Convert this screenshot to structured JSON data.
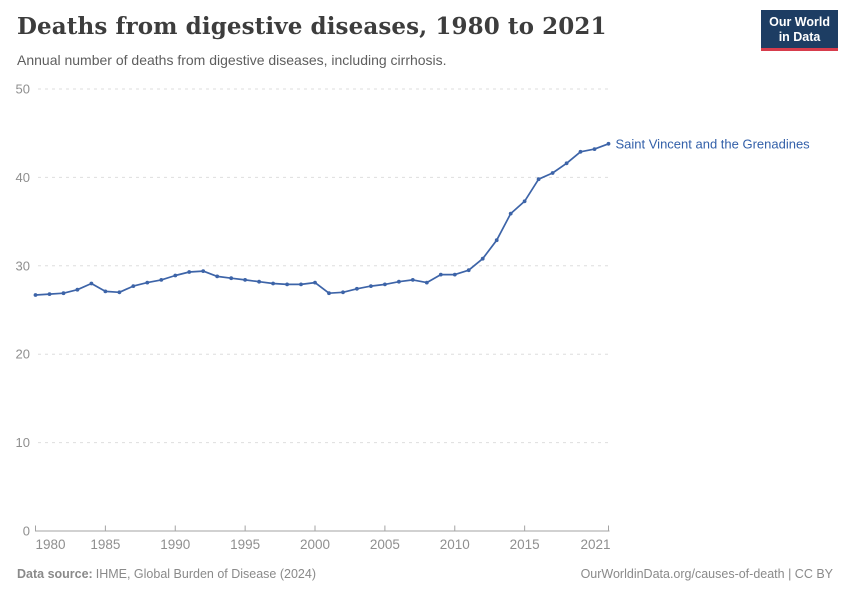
{
  "header": {
    "title": "Deaths from digestive diseases, 1980 to 2021",
    "subtitle": "Annual number of deaths from digestive diseases, including cirrhosis.",
    "logo_line1": "Our World",
    "logo_line2": "in Data"
  },
  "chart_data": {
    "type": "line",
    "title": "Deaths from digestive diseases, 1980 to 2021",
    "xlabel": "",
    "ylabel": "",
    "xlim": [
      1980,
      2021
    ],
    "ylim": [
      0,
      50
    ],
    "yticks": [
      0,
      10,
      20,
      30,
      40,
      50
    ],
    "xticks": [
      1980,
      1985,
      1990,
      1995,
      2000,
      2005,
      2010,
      2015,
      2021
    ],
    "grid": "horizontal-dashed",
    "legend": "end-of-line-label",
    "series": [
      {
        "name": "Saint Vincent and the Grenadines",
        "x": [
          1980,
          1981,
          1982,
          1983,
          1984,
          1985,
          1986,
          1987,
          1988,
          1989,
          1990,
          1991,
          1992,
          1993,
          1994,
          1995,
          1996,
          1997,
          1998,
          1999,
          2000,
          2001,
          2002,
          2003,
          2004,
          2005,
          2006,
          2007,
          2008,
          2009,
          2010,
          2011,
          2012,
          2013,
          2014,
          2015,
          2016,
          2017,
          2018,
          2019,
          2020,
          2021
        ],
        "values": [
          26.7,
          26.8,
          26.9,
          27.3,
          28.0,
          27.1,
          27.0,
          27.7,
          28.1,
          28.4,
          28.9,
          29.3,
          29.4,
          28.8,
          28.6,
          28.4,
          28.2,
          28.0,
          27.9,
          27.9,
          28.1,
          26.9,
          27.0,
          27.4,
          27.7,
          27.9,
          28.2,
          28.4,
          28.1,
          29.0,
          29.0,
          29.5,
          30.8,
          32.9,
          35.9,
          37.3,
          39.8,
          40.5,
          41.6,
          42.9,
          43.2,
          43.8
        ]
      }
    ]
  },
  "colors": {
    "line": "#3d64a8",
    "series_label": "#3360a9",
    "grid": "#dedede",
    "axis": "#a3a3a3",
    "tick_label": "#8f8f8f",
    "logo_bg": "#1d3d63",
    "logo_accent": "#d73c4c"
  },
  "footer": {
    "source_label": "Data source:",
    "source_text": "IHME, Global Burden of Disease (2024)",
    "credit": "OurWorldinData.org/causes-of-death | CC BY"
  }
}
